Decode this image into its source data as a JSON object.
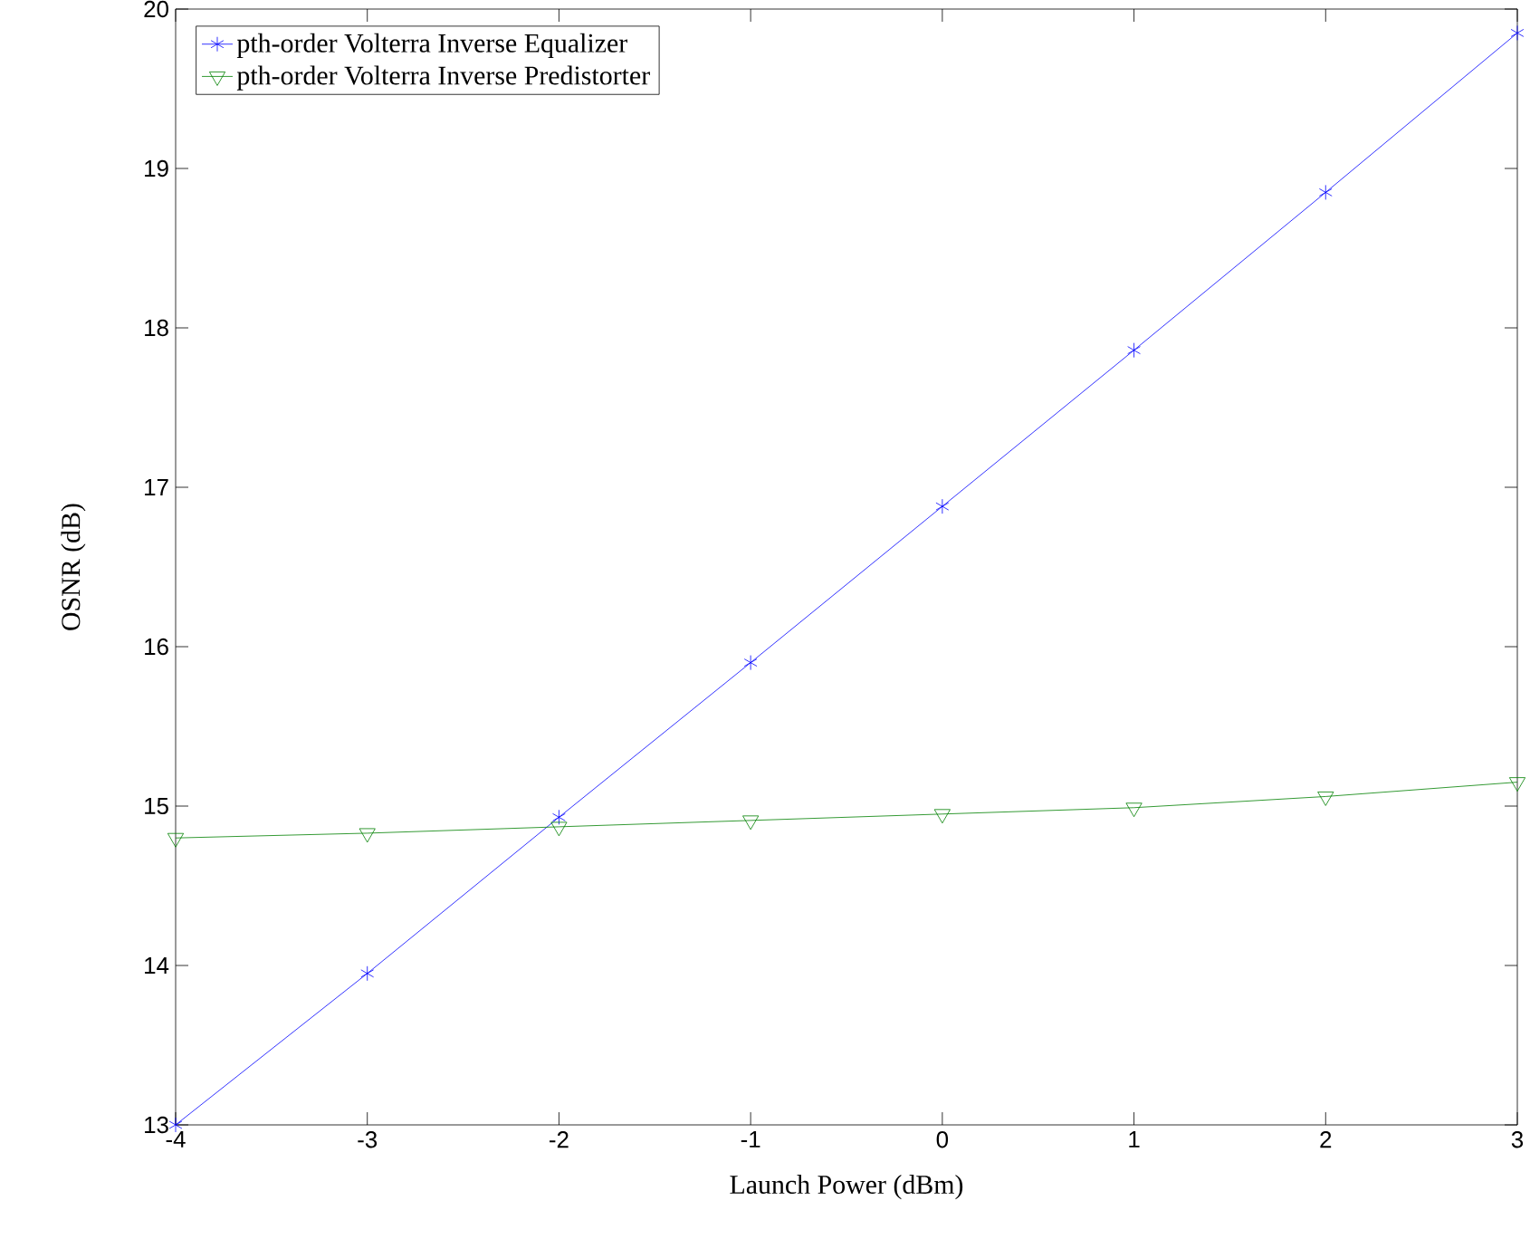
{
  "chart_data": {
    "type": "line",
    "xlabel": "Launch Power (dBm)",
    "ylabel": "OSNR (dB)",
    "xlim": [
      -4,
      3
    ],
    "ylim": [
      13,
      20
    ],
    "xticks": [
      -4,
      -3,
      -2,
      -1,
      0,
      1,
      2,
      3
    ],
    "yticks": [
      13,
      14,
      15,
      16,
      17,
      18,
      19,
      20
    ],
    "grid": false,
    "legend": "top left",
    "line_style": "solid",
    "x": [
      -4,
      -3,
      -2,
      -1,
      0,
      1,
      2,
      3
    ],
    "series": [
      {
        "name": "pth-order Volterra Inverse Equalizer",
        "color": "#0000ff",
        "marker": "cross",
        "values": [
          13.0,
          13.95,
          14.93,
          15.9,
          16.88,
          17.86,
          18.85,
          19.85
        ]
      },
      {
        "name": "pth-order Volterra Inverse Predistorter",
        "color": "#008000",
        "marker": "triangle",
        "values": [
          14.8,
          14.83,
          14.87,
          14.91,
          14.95,
          14.99,
          15.06,
          15.15
        ]
      }
    ]
  }
}
